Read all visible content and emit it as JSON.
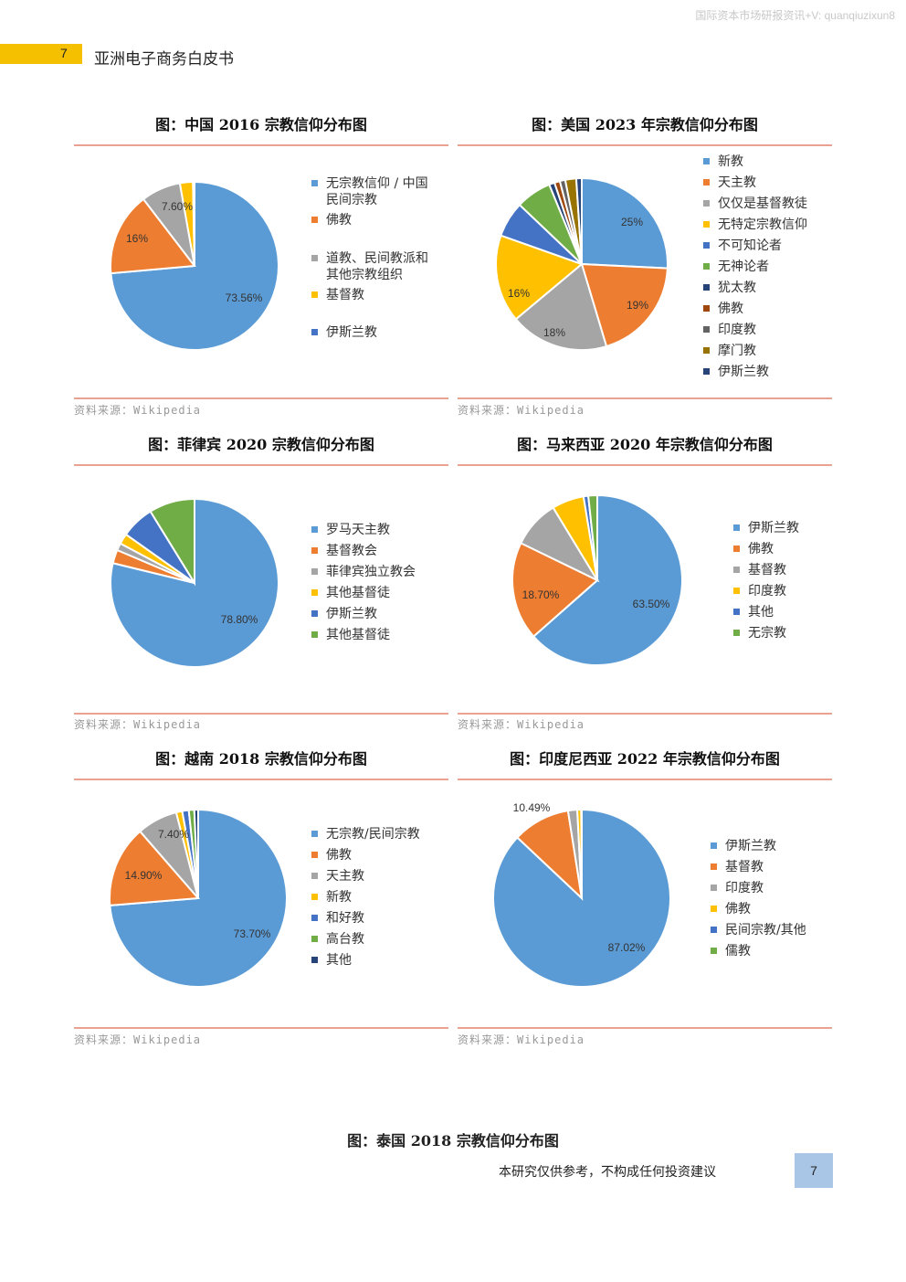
{
  "header": {
    "watermark": "国际资本市场研报资讯+V: quanqiuzixun8",
    "page_tab": "7",
    "doc_title": "亚洲电子商务白皮书"
  },
  "colors": {
    "blue": "#5b9bd5",
    "orange": "#ed7d31",
    "gray": "#a5a5a5",
    "yellow": "#ffc000",
    "dark_blue": "#4472c4",
    "green": "#70ad47",
    "navy": "#264478",
    "brown": "#9e480e",
    "dark_gray": "#636363",
    "olive": "#997300",
    "rule": "#e9a28f"
  },
  "charts": [
    {
      "title": "图：中国 2016 宗教信仰分布图",
      "source": "资料来源：Wikipedia",
      "legend": [
        "无宗教信仰 / 中国民间宗教",
        "佛教",
        "道教、民间教派和其他宗教组织",
        "基督教",
        "伊斯兰教"
      ],
      "slice_labels": [
        "73.56%",
        "16%",
        "7.60%",
        "",
        ""
      ]
    },
    {
      "title": "图：美国 2023 年宗教信仰分布图",
      "source": "资料来源：Wikipedia",
      "legend": [
        "新教",
        "天主教",
        "仅仅是基督教徒",
        "无特定宗教信仰",
        "不可知论者",
        "无神论者",
        "犹太教",
        "佛教",
        "印度教",
        "摩门教",
        "伊斯兰教"
      ],
      "slice_labels": [
        "25%",
        "19%",
        "18%",
        "16%",
        "",
        "",
        "",
        "",
        "",
        "",
        ""
      ]
    },
    {
      "title": "图：菲律宾 2020 宗教信仰分布图",
      "source": "资料来源：Wikipedia",
      "legend": [
        "罗马天主教",
        "基督教会",
        "菲律宾独立教会",
        "其他基督徒",
        "伊斯兰教",
        "其他基督徒"
      ],
      "slice_labels": [
        "78.80%",
        "",
        "",
        "",
        "",
        ""
      ]
    },
    {
      "title": "图：马来西亚 2020 年宗教信仰分布图",
      "source": "资料来源：Wikipedia",
      "legend": [
        "伊斯兰教",
        "佛教",
        "基督教",
        "印度教",
        "其他",
        "无宗教"
      ],
      "slice_labels": [
        "63.50%",
        "18.70%",
        "",
        "",
        "",
        ""
      ]
    },
    {
      "title": "图：越南 2018 宗教信仰分布图",
      "source": "资料来源：Wikipedia",
      "legend": [
        "无宗教/民间宗教",
        "佛教",
        "天主教",
        "新教",
        "和好教",
        "高台教",
        "其他"
      ],
      "slice_labels": [
        "73.70%",
        "14.90%",
        "7.40%",
        "",
        "",
        "",
        ""
      ]
    },
    {
      "title": "图：印度尼西亚 2022 年宗教信仰分布图",
      "source": "资料来源：Wikipedia",
      "legend": [
        "伊斯兰教",
        "基督教",
        "印度教",
        "佛教",
        "民间宗教/其他",
        "儒教"
      ],
      "slice_labels": [
        "87.02%",
        "10.49%",
        "",
        "",
        "",
        ""
      ]
    }
  ],
  "chart_data": [
    {
      "type": "pie",
      "title": "图：中国 2016 宗教信仰分布图",
      "categories": [
        "无宗教信仰 / 中国民间宗教",
        "佛教",
        "道教、民间教派和其他宗教组织",
        "基督教",
        "伊斯兰教"
      ],
      "values": [
        73.56,
        16,
        7.6,
        2.5,
        0.3
      ]
    },
    {
      "type": "pie",
      "title": "图：美国 2023 年宗教信仰分布图",
      "categories": [
        "新教",
        "天主教",
        "仅仅是基督教徒",
        "无特定宗教信仰",
        "不可知论者",
        "无神论者",
        "犹太教",
        "佛教",
        "印度教",
        "摩门教",
        "伊斯兰教"
      ],
      "values": [
        25,
        19,
        18,
        16,
        6.5,
        6.5,
        1,
        1,
        1,
        2,
        1
      ]
    },
    {
      "type": "pie",
      "title": "图：菲律宾 2020 宗教信仰分布图",
      "categories": [
        "罗马天主教",
        "基督教会",
        "菲律宾独立教会",
        "其他基督徒",
        "伊斯兰教",
        "其他基督徒"
      ],
      "values": [
        78.8,
        2.6,
        1.4,
        2,
        6.4,
        8.8
      ]
    },
    {
      "type": "pie",
      "title": "图：马来西亚 2020 年宗教信仰分布图",
      "categories": [
        "伊斯兰教",
        "佛教",
        "基督教",
        "印度教",
        "其他",
        "无宗教"
      ],
      "values": [
        63.5,
        18.7,
        9.1,
        6.1,
        0.9,
        1.7
      ]
    },
    {
      "type": "pie",
      "title": "图：越南 2018 宗教信仰分布图",
      "categories": [
        "无宗教/民间宗教",
        "佛教",
        "天主教",
        "新教",
        "和好教",
        "高台教",
        "其他"
      ],
      "values": [
        73.7,
        14.9,
        7.4,
        1.1,
        1.2,
        1.0,
        0.7
      ]
    },
    {
      "type": "pie",
      "title": "图：印度尼西亚 2022 年宗教信仰分布图",
      "categories": [
        "伊斯兰教",
        "基督教",
        "印度教",
        "佛教",
        "民间宗教/其他",
        "儒教"
      ],
      "values": [
        87.02,
        10.49,
        1.68,
        0.71,
        0.05,
        0.05
      ]
    }
  ],
  "footer": {
    "bottom_title": "图：泰国 2018 宗教信仰分布图",
    "disclaimer": "本研究仅供参考，不构成任何投资建议",
    "page_number": "7"
  }
}
